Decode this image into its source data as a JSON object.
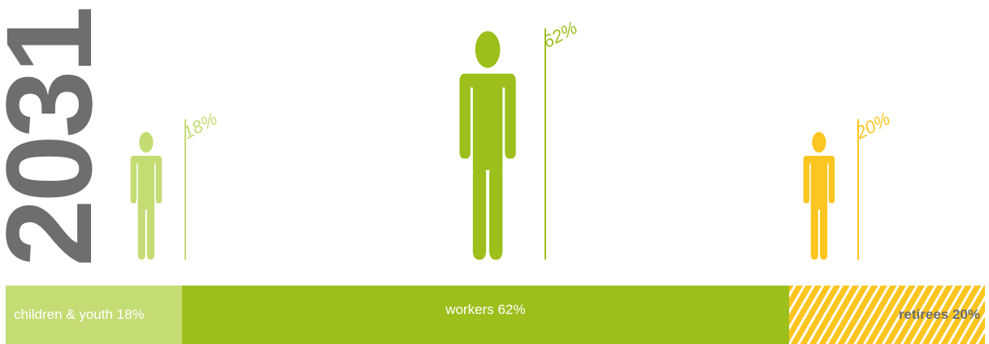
{
  "year": "2031",
  "chart_data": {
    "type": "bar",
    "orientation": "stacked-horizontal",
    "year": "2031",
    "categories": [
      "children & youth",
      "workers",
      "retirees"
    ],
    "values": [
      18,
      62,
      20
    ],
    "figure_labels": [
      "18%",
      "62%",
      "20%"
    ],
    "bar_labels": [
      "children & youth 18%",
      "workers 62%",
      "retirees 20%"
    ],
    "colors": [
      "#c4dc74",
      "#9dbf1c",
      "#fcc520"
    ],
    "retirees_pattern": "diagonal-stripes"
  }
}
